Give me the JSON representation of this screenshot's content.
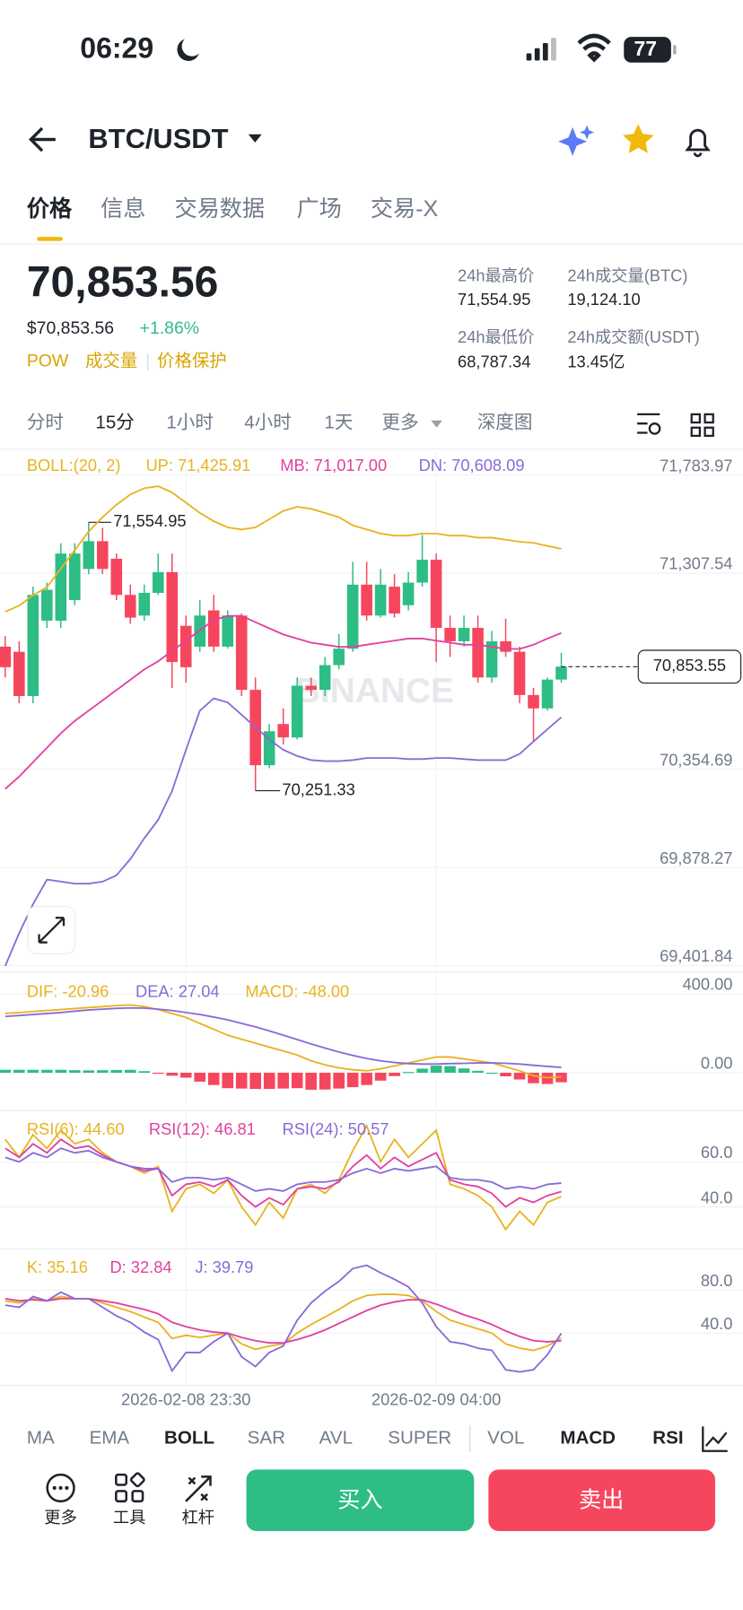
{
  "status_bar": {
    "time": "06:29",
    "battery": "77"
  },
  "header": {
    "title": "BTC/USDT"
  },
  "tabs": [
    "价格",
    "信息",
    "交易数据",
    "广场",
    "交易-X"
  ],
  "ticker": {
    "price": "70,853.56",
    "price_usd": "$70,853.56",
    "change": "+1.86%",
    "tags": [
      "POW",
      "成交量",
      "价格保护"
    ],
    "stats": [
      {
        "label": "24h最高价",
        "value": "71,554.95"
      },
      {
        "label": "24h成交量(BTC)",
        "value": "19,124.10"
      },
      {
        "label": "24h最低价",
        "value": "68,787.34"
      },
      {
        "label": "24h成交额(USDT)",
        "value": "13.45亿"
      }
    ]
  },
  "intervals": [
    "分时",
    "15分",
    "1小时",
    "4小时",
    "1天",
    "更多",
    "深度图"
  ],
  "chart_data": [
    {
      "type": "candlestick",
      "indicator": "BOLL:(20, 2)",
      "watermark": "BINANCE",
      "categories": [
        null,
        null,
        null,
        null,
        null,
        null,
        null,
        null,
        null,
        null,
        null,
        null,
        null,
        "2026-02-08 23:30",
        null,
        null,
        null,
        null,
        null,
        null,
        null,
        null,
        null,
        null,
        null,
        null,
        null,
        null,
        null,
        null,
        null,
        "2026-02-09 04:00",
        null,
        null,
        null,
        null,
        null,
        null,
        null,
        null,
        null
      ],
      "open": [
        70951,
        70926,
        70711,
        71077,
        71077,
        71177,
        71328,
        71463,
        71378,
        71202,
        71102,
        71212,
        71313,
        71052,
        70951,
        71127,
        70951,
        71102,
        70741,
        70375,
        70575,
        70510,
        70761,
        70741,
        70861,
        70941,
        71252,
        71102,
        71242,
        71152,
        71262,
        71373,
        71042,
        70977,
        71042,
        70801,
        70977,
        70926,
        70716,
        70651,
        70791
      ],
      "high": [
        71002,
        70977,
        71242,
        71262,
        71453,
        71453,
        71554.95,
        71528,
        71403,
        71252,
        71252,
        71403,
        71403,
        71102,
        71177,
        71202,
        71127,
        71112,
        70801,
        70575,
        70651,
        70801,
        70801,
        70901,
        71012,
        71363,
        71363,
        71328,
        71303,
        71313,
        71493,
        71403,
        71102,
        71102,
        71102,
        71027,
        71087,
        70951,
        70751,
        70801,
        70921
      ],
      "low": [
        70801,
        70676,
        70676,
        71042,
        71042,
        71152,
        71303,
        71303,
        71177,
        71062,
        71077,
        71202,
        70751,
        70776,
        70926,
        70926,
        70941,
        70711,
        70251.33,
        70360,
        70475,
        70500,
        70711,
        70711,
        70841,
        70926,
        71077,
        71092,
        71092,
        71127,
        71242,
        70876,
        70901,
        70951,
        70776,
        70776,
        70901,
        70676,
        70490,
        70640,
        70776
      ],
      "close": [
        70851,
        70711,
        71202,
        71227,
        71403,
        71403,
        71463,
        71328,
        71202,
        71092,
        71212,
        71313,
        70876,
        70851,
        71102,
        70951,
        71102,
        70741,
        70375,
        70540,
        70510,
        70761,
        70741,
        70861,
        70941,
        71252,
        71102,
        71252,
        71112,
        71262,
        71373,
        71042,
        70977,
        71042,
        70801,
        70977,
        70926,
        70716,
        70651,
        70791,
        70853.55
      ],
      "up_color": "#2ebd85",
      "down_color": "#f6465d",
      "series": [
        {
          "name": "UP: 71,425.91",
          "color": "#e8b321",
          "values": [
            71120,
            71150,
            71200,
            71240,
            71330,
            71420,
            71510,
            71580,
            71640,
            71690,
            71720,
            71730,
            71700,
            71650,
            71600,
            71560,
            71530,
            71520,
            71530,
            71570,
            71610,
            71630,
            71620,
            71600,
            71580,
            71540,
            71520,
            71500,
            71490,
            71490,
            71500,
            71500,
            71490,
            71490,
            71480,
            71480,
            71470,
            71460,
            71455,
            71440,
            71425.91
          ]
        },
        {
          "name": "MB: 71,017.00",
          "color": "#e040a0",
          "values": [
            70260,
            70320,
            70390,
            70460,
            70530,
            70590,
            70640,
            70690,
            70740,
            70790,
            70840,
            70880,
            70930,
            70980,
            71030,
            71080,
            71100,
            71100,
            71070,
            71040,
            71010,
            70990,
            70970,
            70960,
            70950,
            70950,
            70960,
            70970,
            70980,
            70990,
            70990,
            70980,
            70970,
            70960,
            70960,
            70950,
            70940,
            70940,
            70960,
            70990,
            71017
          ]
        },
        {
          "name": "DN: 70,608.09",
          "color": "#8a6ad6",
          "values": [
            69400,
            69560,
            69700,
            69820,
            69810,
            69800,
            69800,
            69810,
            69840,
            69920,
            70020,
            70110,
            70250,
            70450,
            70640,
            70700,
            70680,
            70620,
            70560,
            70500,
            70450,
            70420,
            70400,
            70395,
            70395,
            70400,
            70410,
            70410,
            70410,
            70405,
            70405,
            70410,
            70410,
            70405,
            70400,
            70400,
            70400,
            70430,
            70490,
            70550,
            70608.09
          ]
        }
      ],
      "high_label": "71,554.95",
      "low_label": "70,251.33",
      "last_price_label": "70,853.55",
      "ylim": [
        69380,
        71900
      ],
      "yticks": [
        {
          "value": 69401.84,
          "label": "69,401.84"
        },
        {
          "value": 69878.27,
          "label": "69,878.27"
        },
        {
          "value": 70354.69,
          "label": "70,354.69"
        },
        {
          "value": 71307.54,
          "label": "71,307.54"
        },
        {
          "value": 71783.97,
          "label": "71,783.97"
        }
      ],
      "grid": true
    },
    {
      "type": "macd",
      "series": [
        {
          "name": "DIF: -20.96",
          "color": "#e8b321",
          "values": [
            300,
            305,
            310,
            315,
            320,
            325,
            330,
            335,
            340,
            343,
            335,
            320,
            300,
            280,
            250,
            220,
            190,
            170,
            150,
            130,
            110,
            90,
            60,
            40,
            25,
            15,
            10,
            20,
            35,
            50,
            65,
            80,
            80,
            70,
            60,
            50,
            30,
            10,
            -15,
            -25,
            -20.96
          ]
        },
        {
          "name": "DEA: 27.04",
          "color": "#8a6ad6",
          "values": [
            285,
            290,
            295,
            300,
            305,
            312,
            318,
            322,
            326,
            328,
            327,
            322,
            315,
            305,
            295,
            282,
            268,
            250,
            232,
            212,
            190,
            168,
            146,
            125,
            105,
            88,
            72,
            60,
            52,
            46,
            44,
            44,
            46,
            48,
            50,
            50,
            48,
            44,
            38,
            32,
            27.04
          ]
        }
      ],
      "histogram": {
        "name": "MACD: -48.00",
        "color": "#e8b321",
        "up_color": "#2ebd85",
        "down_color": "#f6465d",
        "values": [
          15,
          15,
          15,
          15,
          15,
          13,
          12,
          13,
          14,
          15,
          8,
          -2,
          -15,
          -25,
          -45,
          -62,
          -78,
          -80,
          -82,
          -82,
          -80,
          -78,
          -86,
          -85,
          -80,
          -73,
          -62,
          -40,
          -17,
          4,
          21,
          36,
          34,
          22,
          10,
          0,
          -18,
          -34,
          -53,
          -57,
          -48
        ]
      },
      "ylim": [
        -176,
        499
      ],
      "yticks": [
        {
          "value": 0,
          "label": "0.00"
        },
        {
          "value": 400,
          "label": "400.00"
        }
      ]
    },
    {
      "type": "line",
      "series": [
        {
          "name": "RSI(6): 44.60",
          "color": "#e8b321",
          "values": [
            70,
            62,
            72,
            66,
            74,
            68,
            70,
            64,
            60,
            58,
            55,
            58,
            38,
            48,
            50,
            46,
            52,
            40,
            32,
            42,
            35,
            48,
            50,
            46,
            52,
            65,
            76,
            60,
            70,
            62,
            68,
            74,
            50,
            48,
            45,
            40,
            30,
            38,
            32,
            42,
            44.6
          ]
        },
        {
          "name": "RSI(12): 46.81",
          "color": "#e040a0",
          "values": [
            66,
            62,
            68,
            64,
            70,
            66,
            67,
            63,
            60,
            58,
            56,
            57,
            45,
            50,
            51,
            49,
            52,
            45,
            40,
            44,
            41,
            48,
            49,
            48,
            51,
            58,
            63,
            57,
            62,
            58,
            61,
            64,
            52,
            50,
            49,
            46,
            40,
            44,
            42,
            45,
            46.81
          ]
        },
        {
          "name": "RSI(24): 50.57",
          "color": "#8a6ad6",
          "values": [
            62,
            60,
            64,
            62,
            66,
            64,
            65,
            62,
            60,
            58,
            57,
            57,
            51,
            53,
            53,
            52,
            53,
            50,
            47,
            48,
            47,
            50,
            51,
            51,
            52,
            55,
            57,
            55,
            57,
            56,
            57,
            58,
            53,
            52,
            52,
            51,
            48,
            49,
            48,
            50,
            50.57
          ]
        }
      ],
      "ylim": [
        22.7,
        81.8
      ],
      "yticks": [
        {
          "value": 40,
          "label": "40.0"
        },
        {
          "value": 60,
          "label": "60.0"
        }
      ]
    },
    {
      "type": "line",
      "series": [
        {
          "name": "K: 35.16",
          "color": "#e8b321",
          "values": [
            70,
            68,
            72,
            70,
            74,
            72,
            72,
            68,
            64,
            60,
            55,
            50,
            35,
            38,
            36,
            38,
            40,
            30,
            25,
            28,
            30,
            40,
            48,
            55,
            62,
            70,
            75,
            76,
            76,
            75,
            70,
            60,
            52,
            48,
            44,
            40,
            30,
            26,
            24,
            28,
            35.16
          ]
        },
        {
          "name": "D: 32.84",
          "color": "#e040a0",
          "values": [
            72,
            70,
            71,
            70,
            72,
            72,
            72,
            70,
            68,
            65,
            62,
            58,
            50,
            46,
            43,
            41,
            40,
            36,
            33,
            31,
            31,
            34,
            38,
            43,
            49,
            55,
            61,
            66,
            69,
            71,
            71,
            67,
            62,
            57,
            53,
            48,
            42,
            37,
            33,
            32,
            32.84
          ]
        },
        {
          "name": "J: 39.79",
          "color": "#8a6ad6",
          "values": [
            66,
            64,
            74,
            70,
            78,
            72,
            72,
            64,
            56,
            50,
            41,
            34,
            5,
            22,
            22,
            32,
            40,
            18,
            9,
            22,
            28,
            52,
            68,
            79,
            88,
            100,
            103,
            96,
            90,
            83,
            68,
            46,
            32,
            30,
            26,
            24,
            6,
            4,
            6,
            20,
            39.79
          ]
        }
      ],
      "ylim": [
        -7.6,
        116.2
      ],
      "yticks": [
        {
          "value": 40,
          "label": "40.0"
        },
        {
          "value": 80,
          "label": "80.0"
        }
      ]
    }
  ],
  "indicator_tabs": [
    "MA",
    "EMA",
    "BOLL",
    "SAR",
    "AVL",
    "SUPER",
    "VOL",
    "MACD",
    "RSI"
  ],
  "actions": [
    "更多",
    "工具",
    "杠杆"
  ],
  "buttons": {
    "buy": "买入",
    "sell": "卖出"
  }
}
